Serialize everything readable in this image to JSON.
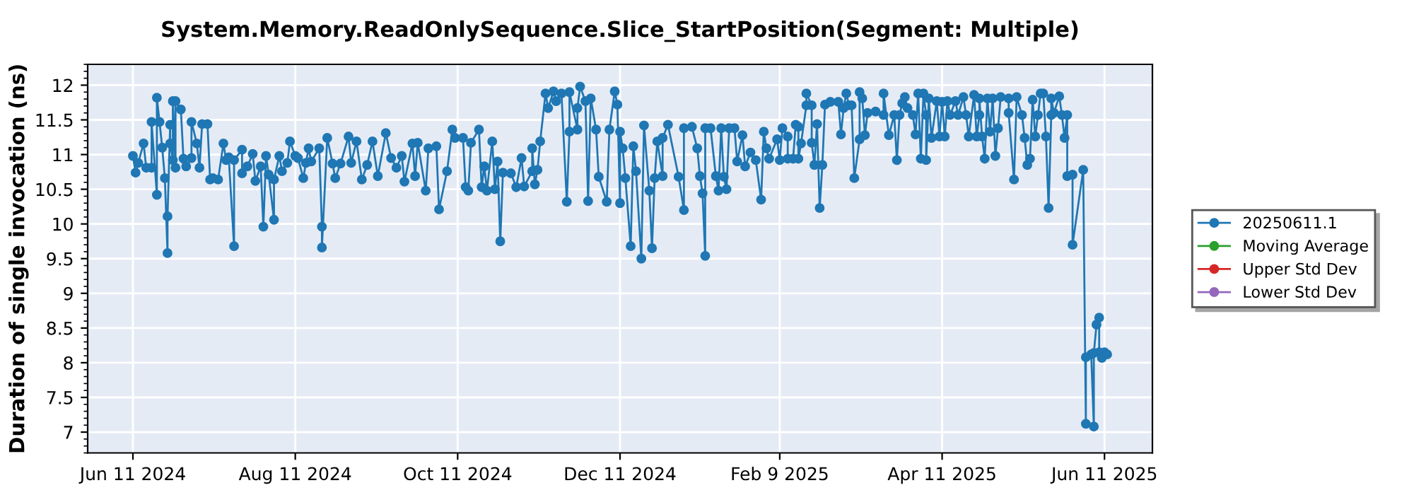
{
  "chart_data": {
    "type": "line",
    "title": "System.Memory.ReadOnlySequence.Slice_StartPosition(Segment: Multiple)",
    "ylabel": "Duration of single invocation (ns)",
    "xlim": [
      "2024-05-25",
      "2025-06-29"
    ],
    "xticks": [
      {
        "value": "2024-06-11",
        "label": "Jun 11 2024"
      },
      {
        "value": "2024-08-11",
        "label": "Aug 11 2024"
      },
      {
        "value": "2024-10-11",
        "label": "Oct 11 2024"
      },
      {
        "value": "2024-12-11",
        "label": "Dec 11 2024"
      },
      {
        "value": "2025-02-09",
        "label": "Feb 9 2025"
      },
      {
        "value": "2025-04-11",
        "label": "Apr 11 2025"
      },
      {
        "value": "2025-06-11",
        "label": "Jun 11 2025"
      }
    ],
    "ylim": [
      6.7,
      12.3
    ],
    "yticks": [
      7,
      7.5,
      8,
      8.5,
      9,
      9.5,
      10,
      10.5,
      11,
      11.5,
      12
    ],
    "grid": true,
    "legend": "right",
    "marker": "circle",
    "line_style": "solid",
    "series": [
      {
        "name": "20250611.1",
        "color": "#1f77b4",
        "x": [
          "2024-06-11",
          "2024-06-12",
          "2024-06-13",
          "2024-06-15",
          "2024-06-16",
          "2024-06-18",
          "2024-06-18",
          "2024-06-20",
          "2024-06-20",
          "2024-06-21",
          "2024-06-22",
          "2024-06-23",
          "2024-06-24",
          "2024-06-24",
          "2024-06-25",
          "2024-06-25",
          "2024-06-26",
          "2024-06-26",
          "2024-06-27",
          "2024-06-27",
          "2024-06-29",
          "2024-06-30",
          "2024-07-01",
          "2024-07-03",
          "2024-07-03",
          "2024-07-05",
          "2024-07-06",
          "2024-07-07",
          "2024-07-09",
          "2024-07-10",
          "2024-07-11",
          "2024-07-13",
          "2024-07-15",
          "2024-07-16",
          "2024-07-17",
          "2024-07-19",
          "2024-07-19",
          "2024-07-22",
          "2024-07-22",
          "2024-07-24",
          "2024-07-26",
          "2024-07-27",
          "2024-07-29",
          "2024-07-30",
          "2024-07-31",
          "2024-08-01",
          "2024-08-03",
          "2024-08-03",
          "2024-08-05",
          "2024-08-06",
          "2024-08-08",
          "2024-08-09",
          "2024-08-11",
          "2024-08-12",
          "2024-08-14",
          "2024-08-15",
          "2024-08-16",
          "2024-08-17",
          "2024-08-20",
          "2024-08-21",
          "2024-08-21",
          "2024-08-23",
          "2024-08-25",
          "2024-08-26",
          "2024-08-28",
          "2024-08-31",
          "2024-09-01",
          "2024-09-03",
          "2024-09-05",
          "2024-09-07",
          "2024-09-09",
          "2024-09-11",
          "2024-09-14",
          "2024-09-16",
          "2024-09-18",
          "2024-09-20",
          "2024-09-21",
          "2024-09-24",
          "2024-09-25",
          "2024-09-26",
          "2024-09-29",
          "2024-09-30",
          "2024-10-03",
          "2024-10-04",
          "2024-10-07",
          "2024-10-09",
          "2024-10-10",
          "2024-10-13",
          "2024-10-14",
          "2024-10-15",
          "2024-10-16",
          "2024-10-19",
          "2024-10-20",
          "2024-10-21",
          "2024-10-22",
          "2024-10-24",
          "2024-10-25",
          "2024-10-26",
          "2024-10-27",
          "2024-10-28",
          "2024-10-31",
          "2024-11-02",
          "2024-11-04",
          "2024-11-05",
          "2024-11-08",
          "2024-11-08",
          "2024-11-09",
          "2024-11-10",
          "2024-11-11",
          "2024-11-13",
          "2024-11-14",
          "2024-11-16",
          "2024-11-17",
          "2024-11-19",
          "2024-11-21",
          "2024-11-22",
          "2024-11-22",
          "2024-11-25",
          "2024-11-25",
          "2024-11-26",
          "2024-11-28",
          "2024-11-29",
          "2024-11-30",
          "2024-12-02",
          "2024-12-03",
          "2024-12-06",
          "2024-12-07",
          "2024-12-09",
          "2024-12-10",
          "2024-12-11",
          "2024-12-11",
          "2024-12-12",
          "2024-12-13",
          "2024-12-15",
          "2024-12-16",
          "2024-12-17",
          "2024-12-19",
          "2024-12-20",
          "2024-12-22",
          "2024-12-23",
          "2024-12-24",
          "2024-12-25",
          "2024-12-27",
          "2024-12-27",
          "2024-12-29",
          "2025-01-02",
          "2025-01-04",
          "2025-01-04",
          "2025-01-07",
          "2025-01-09",
          "2025-01-10",
          "2025-01-11",
          "2025-01-12",
          "2025-01-12",
          "2025-01-14",
          "2025-01-16",
          "2025-01-17",
          "2025-01-18",
          "2025-01-19",
          "2025-01-20",
          "2025-01-21",
          "2025-01-23",
          "2025-01-24",
          "2025-01-26",
          "2025-01-27",
          "2025-01-29",
          "2025-01-31",
          "2025-02-02",
          "2025-02-03",
          "2025-02-04",
          "2025-02-05",
          "2025-02-08",
          "2025-02-09",
          "2025-02-10",
          "2025-02-12",
          "2025-02-12",
          "2025-02-14",
          "2025-02-15",
          "2025-02-16",
          "2025-02-16",
          "2025-02-17",
          "2025-02-19",
          "2025-02-19",
          "2025-02-21",
          "2025-02-21",
          "2025-02-22",
          "2025-02-23",
          "2025-02-24",
          "2025-02-25",
          "2025-02-26",
          "2025-02-28",
          "2025-03-03",
          "2025-03-04",
          "2025-03-05",
          "2025-03-06",
          "2025-03-07",
          "2025-03-08",
          "2025-03-09",
          "2025-03-11",
          "2025-03-11",
          "2025-03-12",
          "2025-03-13",
          "2025-03-14",
          "2025-03-17",
          "2025-03-20",
          "2025-03-20",
          "2025-03-22",
          "2025-03-24",
          "2025-03-25",
          "2025-03-26",
          "2025-03-27",
          "2025-03-28",
          "2025-03-29",
          "2025-03-31",
          "2025-04-01",
          "2025-04-02",
          "2025-04-03",
          "2025-04-04",
          "2025-04-05",
          "2025-04-05",
          "2025-04-06",
          "2025-04-07",
          "2025-04-09",
          "2025-04-10",
          "2025-04-11",
          "2025-04-12",
          "2025-04-13",
          "2025-04-14",
          "2025-04-16",
          "2025-04-17",
          "2025-04-19",
          "2025-04-20",
          "2025-04-21",
          "2025-04-23",
          "2025-04-24",
          "2025-04-25",
          "2025-04-25",
          "2025-04-26",
          "2025-04-27",
          "2025-04-28",
          "2025-04-29",
          "2025-04-30",
          "2025-05-01",
          "2025-05-02",
          "2025-05-03",
          "2025-05-06",
          "2025-05-06",
          "2025-05-08",
          "2025-05-09",
          "2025-05-11",
          "2025-05-12",
          "2025-05-13",
          "2025-05-14",
          "2025-05-15",
          "2025-05-16",
          "2025-05-17",
          "2025-05-18",
          "2025-05-19",
          "2025-05-20",
          "2025-05-21",
          "2025-05-22",
          "2025-05-22",
          "2025-05-23",
          "2025-05-25",
          "2025-05-26",
          "2025-05-27",
          "2025-05-28",
          "2025-05-28",
          "2025-05-30",
          "2025-05-30",
          "2025-06-03",
          "2025-06-04",
          "2025-06-04",
          "2025-06-06",
          "2025-06-07",
          "2025-06-07",
          "2025-06-08",
          "2025-06-09",
          "2025-06-09",
          "2025-06-10",
          "2025-06-11",
          "2025-06-12"
        ],
        "values": [
          10.98,
          10.74,
          10.88,
          11.16,
          10.81,
          10.81,
          11.47,
          10.42,
          11.82,
          11.47,
          11.1,
          10.66,
          9.58,
          10.11,
          11.43,
          11.16,
          10.92,
          11.77,
          10.81,
          11.77,
          11.65,
          10.94,
          10.83,
          10.95,
          11.47,
          11.16,
          10.81,
          11.44,
          11.44,
          10.64,
          10.66,
          10.64,
          11.16,
          10.92,
          10.96,
          9.68,
          10.92,
          11.07,
          10.73,
          10.83,
          11.01,
          10.62,
          10.83,
          9.96,
          10.98,
          10.71,
          10.06,
          10.64,
          10.98,
          10.76,
          10.88,
          11.19,
          10.98,
          10.95,
          10.66,
          10.88,
          11.09,
          10.9,
          11.09,
          9.96,
          9.66,
          11.24,
          10.87,
          10.66,
          10.87,
          11.26,
          10.88,
          11.19,
          10.64,
          10.85,
          11.19,
          10.69,
          11.31,
          10.95,
          10.81,
          10.98,
          10.61,
          11.16,
          10.69,
          11.17,
          10.48,
          11.09,
          11.12,
          10.21,
          10.76,
          11.36,
          11.24,
          11.24,
          10.53,
          10.48,
          11.17,
          11.36,
          10.53,
          10.83,
          10.48,
          11.19,
          10.5,
          10.9,
          9.75,
          10.74,
          10.73,
          10.53,
          10.95,
          10.54,
          10.76,
          11.09,
          10.57,
          10.78,
          11.19,
          11.88,
          11.67,
          11.91,
          11.77,
          11.88,
          10.32,
          11.33,
          11.9,
          11.36,
          11.67,
          11.98,
          11.77,
          10.33,
          11.81,
          11.36,
          10.68,
          10.32,
          11.36,
          11.91,
          11.72,
          10.3,
          11.33,
          11.09,
          10.66,
          9.68,
          11.12,
          10.76,
          9.5,
          11.42,
          10.48,
          9.65,
          10.66,
          11.19,
          10.69,
          11.24,
          11.43,
          10.68,
          10.2,
          11.38,
          11.4,
          11.09,
          10.69,
          10.44,
          9.54,
          11.38,
          11.38,
          10.69,
          10.48,
          11.38,
          10.68,
          10.5,
          11.38,
          11.38,
          10.9,
          11.28,
          10.83,
          11.03,
          10.92,
          10.35,
          11.33,
          11.09,
          10.94,
          11.22,
          10.92,
          11.38,
          11.26,
          10.94,
          10.94,
          11.43,
          11.4,
          10.94,
          11.16,
          11.71,
          11.88,
          11.71,
          11.17,
          10.85,
          11.44,
          10.23,
          10.85,
          11.72,
          11.76,
          11.76,
          11.29,
          11.67,
          11.88,
          11.71,
          11.71,
          10.66,
          11.22,
          11.9,
          11.81,
          11.28,
          11.6,
          11.62,
          11.57,
          11.88,
          11.28,
          11.57,
          10.92,
          11.57,
          11.74,
          11.83,
          11.67,
          11.57,
          11.29,
          11.88,
          10.94,
          11.88,
          11.57,
          10.92,
          11.81,
          11.24,
          11.77,
          11.26,
          11.76,
          11.26,
          11.77,
          11.57,
          11.77,
          11.57,
          11.83,
          11.57,
          11.26,
          11.86,
          11.26,
          11.57,
          11.81,
          11.26,
          10.94,
          11.81,
          11.33,
          11.81,
          10.98,
          11.38,
          11.83,
          11.81,
          11.6,
          10.64,
          11.83,
          11.57,
          11.24,
          10.85,
          10.94,
          11.79,
          11.26,
          11.57,
          11.88,
          11.88,
          11.26,
          10.23,
          11.57,
          11.81,
          11.6,
          11.84,
          11.57,
          11.24,
          11.57,
          10.69,
          10.71,
          9.7,
          10.78,
          7.12,
          8.08,
          8.12,
          7.08,
          8.14,
          8.55,
          8.65,
          8.15,
          8.07,
          8.15,
          8.12
        ]
      },
      {
        "name": "Moving Average",
        "color": "#2ca02c"
      },
      {
        "name": "Upper Std Dev",
        "color": "#d62728"
      },
      {
        "name": "Lower Std Dev",
        "color": "#9467bd"
      }
    ]
  }
}
